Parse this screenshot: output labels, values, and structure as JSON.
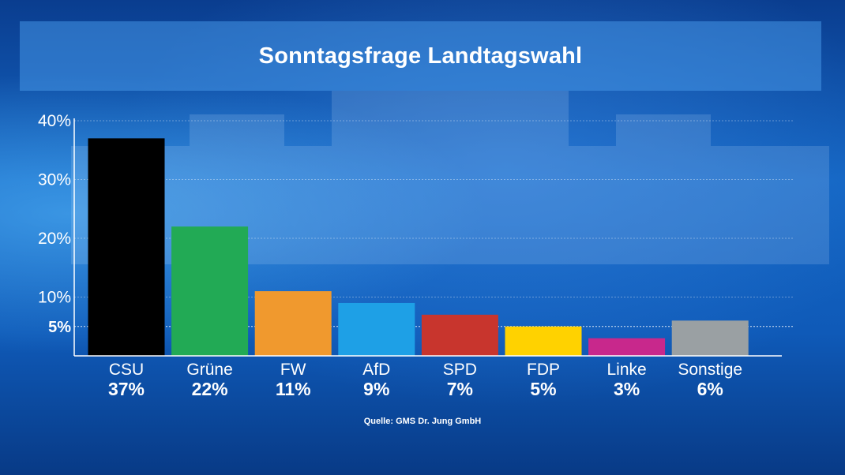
{
  "header": {
    "title": "Sonntagsfrage Landtagswahl"
  },
  "source": "Quelle: GMS Dr. Jung GmbH",
  "chart_data": {
    "type": "bar",
    "categories": [
      "CSU",
      "Grüne",
      "FW",
      "AfD",
      "SPD",
      "FDP",
      "Linke",
      "Sonstige"
    ],
    "values": [
      37,
      22,
      11,
      9,
      7,
      5,
      3,
      6
    ],
    "value_labels": [
      "37%",
      "22%",
      "11%",
      "9%",
      "7%",
      "5%",
      "3%",
      "6%"
    ],
    "colors": [
      "#000000",
      "#22aa55",
      "#f0992e",
      "#1ea0e6",
      "#c8352d",
      "#ffd200",
      "#c8288c",
      "#9aa0a3"
    ],
    "ylim": [
      0,
      40
    ],
    "yticks": [
      10,
      20,
      30,
      40
    ],
    "ytick_labels": [
      "10%",
      "20%",
      "30%",
      "40%"
    ],
    "threshold": 5,
    "threshold_label": "5%",
    "grid": true,
    "title": "Sonntagsfrage Landtagswahl"
  }
}
